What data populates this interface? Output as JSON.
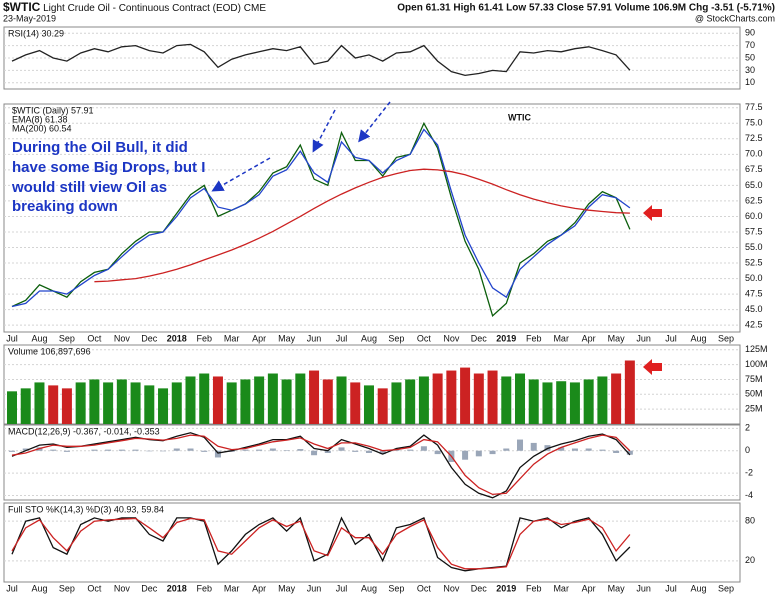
{
  "header": {
    "symbol": "$WTIC",
    "name": "Light Crude Oil - Continuous Contract (EOD)",
    "exchange": "CME",
    "date": "23-May-2019",
    "quote": "Open 61.31 High 61.41 Low 57.33 Close 57.91 Volume 106.9M Chg -3.51 (-5.71%)",
    "source": "@ StockCharts.com"
  },
  "annotation": [
    "During the Oil Bull, it did",
    "have some Big Drops, but  I",
    "would still view Oil as",
    "breaking down"
  ],
  "watermark": "WTIC",
  "chart_data": [
    {
      "type": "line",
      "title": "RSI(14) 30.29",
      "ylim": [
        0,
        100
      ],
      "yticks": [
        10,
        30,
        50,
        70,
        90
      ],
      "grid": true,
      "series": [
        {
          "color": "#222222",
          "values": [
            45,
            55,
            62,
            50,
            45,
            58,
            65,
            60,
            68,
            70,
            62,
            58,
            70,
            72,
            60,
            35,
            48,
            55,
            60,
            65,
            62,
            68,
            40,
            45,
            70,
            50,
            55,
            45,
            58,
            60,
            70,
            45,
            28,
            22,
            25,
            30,
            28,
            60,
            58,
            62,
            60,
            65,
            68,
            62,
            55,
            30.29
          ]
        }
      ]
    },
    {
      "type": "line",
      "ylim": [
        41.4,
        78.1
      ],
      "grid": true,
      "yticks": [
        {
          "value": 42.5,
          "label": "42.5"
        },
        {
          "value": 45,
          "label": "45.0"
        },
        {
          "value": 47.5,
          "label": "47.5"
        },
        {
          "value": 50,
          "label": "50.0"
        },
        {
          "value": 52.5,
          "label": "52.5"
        },
        {
          "value": 55,
          "label": "55.0"
        },
        {
          "value": 57.5,
          "label": "57.5"
        },
        {
          "value": 60,
          "label": "60.0"
        },
        {
          "value": 62.5,
          "label": "62.5"
        },
        {
          "value": 65,
          "label": "65.0"
        },
        {
          "value": 67.5,
          "label": "67.5"
        },
        {
          "value": 70,
          "label": "70.0"
        },
        {
          "value": 72.5,
          "label": "72.5"
        },
        {
          "value": 75,
          "label": "75.0"
        },
        {
          "value": 77.5,
          "label": "77.5"
        }
      ],
      "categories": [
        "Jul",
        null,
        "Aug",
        null,
        "Sep",
        null,
        "Oct",
        null,
        "Nov",
        null,
        "Dec",
        null,
        "2018",
        null,
        "Feb",
        null,
        "Mar",
        null,
        "Apr",
        null,
        "May",
        null,
        "Jun",
        null,
        "Jul",
        null,
        "Aug",
        null,
        "Sep",
        null,
        "Oct",
        null,
        "Nov",
        null,
        "Dec",
        null,
        "2019",
        null,
        "Feb",
        null,
        "Mar",
        null,
        "Apr",
        null,
        "May",
        null,
        "Jun",
        null,
        "Jul",
        null,
        "Aug",
        null,
        "Sep",
        null
      ],
      "series": [
        {
          "name": "$WTIC (Daily) 57.91",
          "color": "#0b5e0b",
          "values": [
            45.5,
            46.5,
            49,
            48,
            47,
            49.5,
            51,
            51.5,
            54,
            56,
            57.5,
            57.5,
            60.5,
            63.5,
            65,
            60,
            61,
            62,
            64,
            67,
            68,
            71.5,
            66,
            65,
            73.5,
            69,
            69,
            66.5,
            69.5,
            70,
            75,
            71,
            63,
            56,
            51.5,
            44,
            46,
            52.5,
            54,
            56,
            57,
            59,
            62,
            64,
            63,
            57.91,
            null,
            null,
            null,
            null,
            null,
            null,
            null,
            null
          ]
        },
        {
          "name": "EMA(8) 61.38",
          "color": "#2244cc",
          "values": [
            45.5,
            46,
            48,
            48,
            47.5,
            49,
            50.5,
            51.5,
            53.5,
            55.5,
            57,
            57.5,
            60,
            63,
            64.5,
            61.5,
            61,
            62,
            63.5,
            66.5,
            67.5,
            70.5,
            67,
            65.5,
            72,
            69.5,
            69,
            67,
            69,
            70,
            74,
            71.5,
            64,
            57,
            52.5,
            48.5,
            47,
            51.5,
            53.5,
            55.5,
            57,
            58.5,
            61.5,
            63.5,
            63,
            61.38,
            null,
            null,
            null,
            null,
            null,
            null,
            null,
            null
          ]
        },
        {
          "name": "MA(200) 60.54",
          "color": "#cc2222",
          "values": [
            null,
            null,
            null,
            null,
            null,
            null,
            49.5,
            49.6,
            49.8,
            50,
            50.4,
            50.9,
            51.5,
            52.2,
            53,
            53.8,
            54.6,
            55.5,
            56.5,
            57.6,
            58.8,
            60,
            61.3,
            62.5,
            63.6,
            64.6,
            65.5,
            66.3,
            66.9,
            67.4,
            67.6,
            67.5,
            67.2,
            66.7,
            66,
            65.2,
            64.3,
            63.5,
            62.8,
            62.2,
            61.7,
            61.3,
            61,
            60.8,
            60.6,
            60.54,
            null,
            null,
            null,
            null,
            null,
            null,
            null,
            null
          ]
        }
      ]
    },
    {
      "type": "bar",
      "title": "Volume 106,897,696",
      "ylim": [
        0,
        133000000
      ],
      "grid": true,
      "up_color": "#1a8a1a",
      "down_color": "#cc2222",
      "yticks": [
        {
          "value": 25000000,
          "label": "25M"
        },
        {
          "value": 50000000,
          "label": "50M"
        },
        {
          "value": 75000000,
          "label": "75M"
        },
        {
          "value": 100000000,
          "label": "100M"
        },
        {
          "value": 125000000,
          "label": "125M"
        }
      ],
      "values": [
        55000000,
        60000000,
        70000000,
        65000000,
        60000000,
        70000000,
        75000000,
        70000000,
        75000000,
        70000000,
        65000000,
        60000000,
        70000000,
        80000000,
        85000000,
        80000000,
        70000000,
        75000000,
        80000000,
        85000000,
        75000000,
        85000000,
        90000000,
        75000000,
        80000000,
        70000000,
        65000000,
        60000000,
        70000000,
        75000000,
        80000000,
        85000000,
        90000000,
        95000000,
        85000000,
        90000000,
        80000000,
        85000000,
        75000000,
        70000000,
        72000000,
        70000000,
        75000000,
        80000000,
        85000000,
        106897696
      ]
    },
    {
      "type": "line",
      "title": "MACD(12,26,9) -0.367, -0.014, -0.353",
      "ylim": [
        -4.4,
        2.3
      ],
      "yticks": [
        2,
        0,
        -2,
        -4
      ],
      "grid": true,
      "series": [
        {
          "type": "bar",
          "color": "#9aa6b8",
          "values": [
            -0.1,
            0.2,
            0.3,
            0.1,
            -0.1,
            0,
            0.1,
            0.1,
            0.1,
            0.1,
            -0.05,
            -0.05,
            0.2,
            0.2,
            -0.1,
            -0.6,
            -0.1,
            0.1,
            0.1,
            0.2,
            0.05,
            0.15,
            -0.4,
            -0.2,
            0.3,
            -0.1,
            -0.2,
            -0.3,
            0.1,
            0.1,
            0.4,
            -0.3,
            -1,
            -0.8,
            -0.5,
            -0.3,
            0.2,
            1,
            0.7,
            0.5,
            0.3,
            0.2,
            0.2,
            0.1,
            -0.2,
            -0.353
          ]
        },
        {
          "color": "#111111",
          "values": [
            -0.5,
            0,
            0.5,
            0.6,
            0.3,
            0.4,
            0.6,
            0.8,
            1,
            1.2,
            1,
            0.9,
            1.3,
            1.6,
            1.2,
            -0.2,
            0,
            0.3,
            0.6,
            1,
            1,
            1.3,
            0.2,
            0,
            1,
            0.6,
            0.2,
            -0.3,
            0.2,
            0.4,
            1.4,
            0.5,
            -1.5,
            -3,
            -3.8,
            -4.2,
            -3.6,
            -1.5,
            -0.5,
            0.2,
            0.6,
            0.9,
            1.3,
            1.5,
            1,
            -0.367
          ]
        },
        {
          "color": "#cc2222",
          "values": [
            -0.4,
            -0.2,
            0.2,
            0.5,
            0.4,
            0.4,
            0.5,
            0.7,
            0.9,
            1.1,
            1.05,
            0.95,
            1.1,
            1.4,
            1.3,
            0.4,
            0.1,
            0.2,
            0.5,
            0.8,
            0.95,
            1.15,
            0.6,
            0.2,
            0.7,
            0.7,
            0.4,
            0,
            0.1,
            0.3,
            1,
            0.8,
            -0.5,
            -2.2,
            -3.3,
            -3.9,
            -3.8,
            -2.5,
            -1.2,
            -0.3,
            0.3,
            0.7,
            1.1,
            1.4,
            1.2,
            -0.014
          ]
        }
      ]
    },
    {
      "type": "line",
      "title": "Full STO %K(14,3) %D(3) 40.93, 59.84",
      "ylim": [
        -12,
        107.5
      ],
      "yticks": [
        20,
        80
      ],
      "grid": true,
      "categories": [
        "Jul",
        null,
        "Aug",
        null,
        "Sep",
        null,
        "Oct",
        null,
        "Nov",
        null,
        "Dec",
        null,
        "2018",
        null,
        "Feb",
        null,
        "Mar",
        null,
        "Apr",
        null,
        "May",
        null,
        "Jun",
        null,
        "Jul",
        null,
        "Aug",
        null,
        "Sep",
        null,
        "Oct",
        null,
        "Nov",
        null,
        "Dec",
        null,
        "2019",
        null,
        "Feb",
        null,
        "Mar",
        null,
        "Apr",
        null,
        "May",
        null,
        "Jun",
        null,
        "Jul",
        null,
        "Aug",
        null,
        "Sep",
        null
      ],
      "series": [
        {
          "color": "#111111",
          "values": [
            30,
            80,
            85,
            40,
            30,
            75,
            85,
            80,
            85,
            85,
            60,
            50,
            85,
            85,
            80,
            15,
            35,
            60,
            75,
            85,
            65,
            85,
            20,
            30,
            85,
            45,
            60,
            20,
            70,
            75,
            85,
            25,
            10,
            5,
            8,
            10,
            12,
            85,
            80,
            85,
            70,
            80,
            85,
            60,
            20,
            40.93,
            null,
            null,
            null,
            null,
            null,
            null,
            null,
            null
          ]
        },
        {
          "color": "#cc2222",
          "values": [
            35,
            70,
            82,
            55,
            35,
            65,
            80,
            82,
            83,
            84,
            70,
            55,
            78,
            84,
            82,
            35,
            30,
            50,
            70,
            82,
            72,
            80,
            35,
            28,
            70,
            55,
            55,
            30,
            60,
            72,
            82,
            40,
            15,
            8,
            8,
            9,
            11,
            60,
            80,
            83,
            75,
            78,
            83,
            70,
            35,
            59.84,
            null,
            null,
            null,
            null,
            null,
            null,
            null,
            null
          ]
        }
      ]
    }
  ]
}
